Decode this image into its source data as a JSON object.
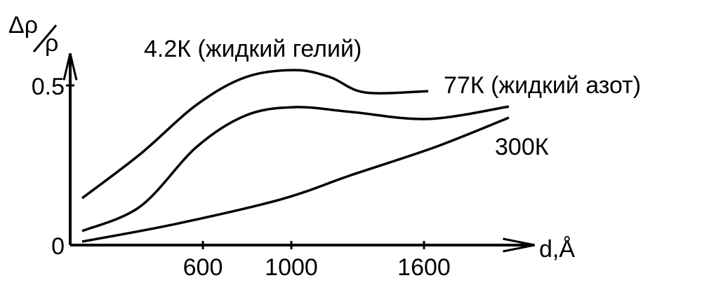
{
  "chart_data": {
    "type": "line",
    "ylabel": {
      "numerator": "Δρ",
      "denominator": "ρ"
    },
    "xlabel": "d,Å",
    "xlim": [
      0,
      2100
    ],
    "ylim": [
      0,
      0.6
    ],
    "xticks": [
      600,
      1000,
      1600
    ],
    "yticks": [
      0,
      0.5
    ],
    "grid": false,
    "series": [
      {
        "name": "4.2К (жидкий гелий)",
        "color": "#000000",
        "x": [
          54,
          317,
          571,
          794,
          1016,
          1175,
          1333,
          1619
        ],
        "values": [
          0.147,
          0.285,
          0.439,
          0.526,
          0.548,
          0.526,
          0.478,
          0.482
        ]
      },
      {
        "name": "77К (жидкий азот)",
        "color": "#000000",
        "x": [
          54,
          317,
          571,
          794,
          1016,
          1270,
          1619,
          1984
        ],
        "values": [
          0.044,
          0.121,
          0.307,
          0.406,
          0.432,
          0.417,
          0.395,
          0.434
        ]
      },
      {
        "name": "300К",
        "color": "#000000",
        "x": [
          54,
          476,
          952,
          1270,
          1651,
          1984
        ],
        "values": [
          0.011,
          0.066,
          0.143,
          0.219,
          0.307,
          0.399
        ]
      }
    ]
  }
}
